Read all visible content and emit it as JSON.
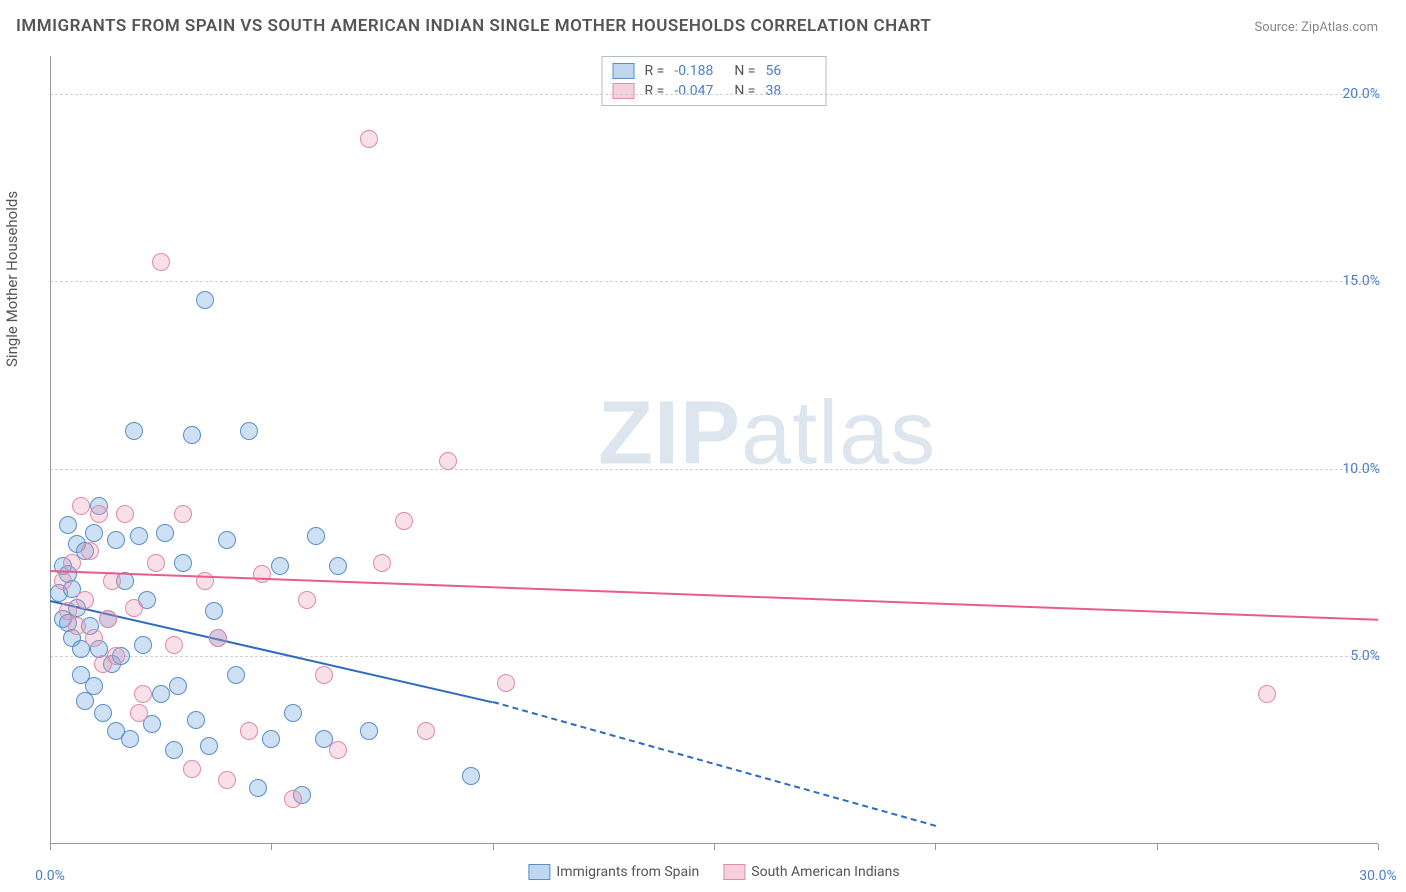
{
  "title": "IMMIGRANTS FROM SPAIN VS SOUTH AMERICAN INDIAN SINGLE MOTHER HOUSEHOLDS CORRELATION CHART",
  "source": "Source: ZipAtlas.com",
  "y_axis_label": "Single Mother Households",
  "watermark_a": "ZIP",
  "watermark_b": "atlas",
  "chart": {
    "type": "scatter",
    "xlim": [
      0,
      30
    ],
    "ylim": [
      0,
      21
    ],
    "x_ticks": [
      0,
      5,
      10,
      15,
      20,
      25,
      30
    ],
    "y_ticks": [
      5,
      10,
      15,
      20
    ],
    "x_tick_labels": {
      "0": "0.0%",
      "30": "30.0%"
    },
    "y_tick_labels": {
      "5": "5.0%",
      "10": "10.0%",
      "15": "15.0%",
      "20": "20.0%"
    },
    "background_color": "#ffffff",
    "grid_color": "#d0d0d0",
    "axis_color": "#999999",
    "tick_label_color": "#4a7ec9",
    "point_radius": 9,
    "series": [
      {
        "name": "Immigrants from Spain",
        "color_fill": "rgba(116,166,220,0.35)",
        "color_stroke": "#5a8fc9",
        "trend_color": "#2e6bc0",
        "r": "-0.188",
        "n": "56",
        "trend": {
          "x1": 0,
          "y1": 6.5,
          "x2": 10,
          "y2": 3.8,
          "x_dash_to": 20,
          "y_dash_to": 0.5
        },
        "data": [
          [
            0.2,
            6.7
          ],
          [
            0.3,
            7.4
          ],
          [
            0.3,
            6.0
          ],
          [
            0.4,
            5.9
          ],
          [
            0.4,
            7.2
          ],
          [
            0.5,
            5.5
          ],
          [
            0.6,
            6.3
          ],
          [
            0.6,
            8.0
          ],
          [
            0.7,
            5.2
          ],
          [
            0.7,
            4.5
          ],
          [
            0.8,
            3.8
          ],
          [
            0.9,
            5.8
          ],
          [
            1.0,
            4.2
          ],
          [
            1.0,
            8.3
          ],
          [
            1.1,
            9.0
          ],
          [
            1.2,
            3.5
          ],
          [
            1.3,
            6.0
          ],
          [
            1.4,
            4.8
          ],
          [
            1.5,
            8.1
          ],
          [
            1.5,
            3.0
          ],
          [
            1.6,
            5.0
          ],
          [
            1.8,
            2.8
          ],
          [
            1.9,
            11.0
          ],
          [
            2.0,
            8.2
          ],
          [
            2.2,
            6.5
          ],
          [
            2.3,
            3.2
          ],
          [
            2.5,
            4.0
          ],
          [
            2.6,
            8.3
          ],
          [
            2.8,
            2.5
          ],
          [
            3.0,
            7.5
          ],
          [
            3.2,
            10.9
          ],
          [
            3.3,
            3.3
          ],
          [
            3.5,
            14.5
          ],
          [
            3.6,
            2.6
          ],
          [
            3.8,
            5.5
          ],
          [
            4.0,
            8.1
          ],
          [
            4.2,
            4.5
          ],
          [
            4.5,
            11.0
          ],
          [
            4.7,
            1.5
          ],
          [
            5.0,
            2.8
          ],
          [
            5.2,
            7.4
          ],
          [
            5.5,
            3.5
          ],
          [
            5.7,
            1.3
          ],
          [
            6.0,
            8.2
          ],
          [
            6.2,
            2.8
          ],
          [
            6.5,
            7.4
          ],
          [
            7.2,
            3.0
          ],
          [
            9.5,
            1.8
          ],
          [
            0.5,
            6.8
          ],
          [
            0.8,
            7.8
          ],
          [
            1.1,
            5.2
          ],
          [
            1.7,
            7.0
          ],
          [
            2.1,
            5.3
          ],
          [
            2.9,
            4.2
          ],
          [
            3.7,
            6.2
          ],
          [
            0.4,
            8.5
          ]
        ]
      },
      {
        "name": "South American Indians",
        "color_fill": "rgba(236,150,178,0.3)",
        "color_stroke": "#e08ba8",
        "trend_color": "#e85d8c",
        "r": "-0.047",
        "n": "38",
        "trend": {
          "x1": 0,
          "y1": 7.3,
          "x2": 30,
          "y2": 6.0
        },
        "data": [
          [
            0.3,
            7.0
          ],
          [
            0.4,
            6.2
          ],
          [
            0.5,
            7.5
          ],
          [
            0.6,
            5.8
          ],
          [
            0.8,
            6.5
          ],
          [
            1.0,
            5.5
          ],
          [
            1.1,
            8.8
          ],
          [
            1.2,
            4.8
          ],
          [
            1.4,
            7.0
          ],
          [
            1.5,
            5.0
          ],
          [
            1.7,
            8.8
          ],
          [
            1.9,
            6.3
          ],
          [
            2.1,
            4.0
          ],
          [
            2.4,
            7.5
          ],
          [
            2.5,
            15.5
          ],
          [
            2.8,
            5.3
          ],
          [
            3.0,
            8.8
          ],
          [
            3.2,
            2.0
          ],
          [
            3.5,
            7.0
          ],
          [
            3.8,
            5.5
          ],
          [
            4.0,
            1.7
          ],
          [
            4.5,
            3.0
          ],
          [
            4.8,
            7.2
          ],
          [
            5.5,
            1.2
          ],
          [
            5.8,
            6.5
          ],
          [
            6.2,
            4.5
          ],
          [
            6.5,
            2.5
          ],
          [
            7.2,
            18.8
          ],
          [
            7.5,
            7.5
          ],
          [
            8.0,
            8.6
          ],
          [
            8.5,
            3.0
          ],
          [
            9.0,
            10.2
          ],
          [
            10.3,
            4.3
          ],
          [
            27.5,
            4.0
          ],
          [
            0.7,
            9.0
          ],
          [
            1.3,
            6.0
          ],
          [
            2.0,
            3.5
          ],
          [
            0.9,
            7.8
          ]
        ]
      }
    ]
  },
  "legend_bottom": [
    {
      "swatch": "blue",
      "label": "Immigrants from Spain"
    },
    {
      "swatch": "pink",
      "label": "South American Indians"
    }
  ]
}
